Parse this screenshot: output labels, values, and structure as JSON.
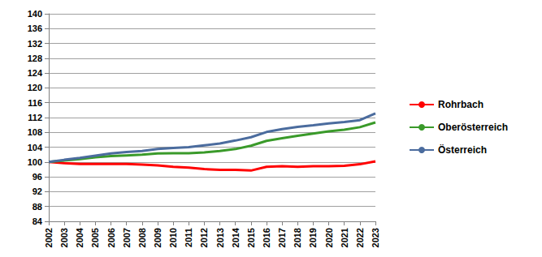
{
  "chart_data": {
    "type": "line",
    "categories": [
      "2002",
      "2003",
      "2004",
      "2005",
      "2006",
      "2007",
      "2008",
      "2009",
      "2010",
      "2011",
      "2012",
      "2013",
      "2014",
      "2015",
      "2016",
      "2017",
      "2018",
      "2019",
      "2020",
      "2021",
      "2022",
      "2023"
    ],
    "series": [
      {
        "name": "Rohrbach",
        "color": "#ff0000",
        "values": [
          100,
          99.7,
          99.5,
          99.5,
          99.5,
          99.5,
          99.3,
          99.1,
          98.7,
          98.5,
          98.1,
          97.9,
          97.9,
          97.7,
          98.7,
          98.9,
          98.7,
          98.9,
          98.9,
          99.0,
          99.4,
          100.2
        ]
      },
      {
        "name": "Oberösterreich",
        "color": "#3a9a2a",
        "values": [
          100,
          100.4,
          100.8,
          101.3,
          101.6,
          101.8,
          102.0,
          102.3,
          102.4,
          102.4,
          102.6,
          103.0,
          103.5,
          104.4,
          105.7,
          106.4,
          107.1,
          107.7,
          108.3,
          108.7,
          109.4,
          110.7
        ]
      },
      {
        "name": "Österreich",
        "color": "#4b6c9e",
        "values": [
          100,
          100.6,
          101.1,
          101.7,
          102.3,
          102.7,
          103.0,
          103.5,
          103.8,
          104.0,
          104.5,
          105.0,
          105.8,
          106.7,
          108.1,
          108.9,
          109.5,
          109.9,
          110.4,
          110.8,
          111.3,
          113.1
        ]
      }
    ],
    "ylim": [
      84,
      140
    ],
    "yticks": [
      84,
      88,
      92,
      96,
      100,
      104,
      108,
      112,
      116,
      120,
      124,
      128,
      132,
      136,
      140
    ],
    "grid": true,
    "legend": "right"
  }
}
